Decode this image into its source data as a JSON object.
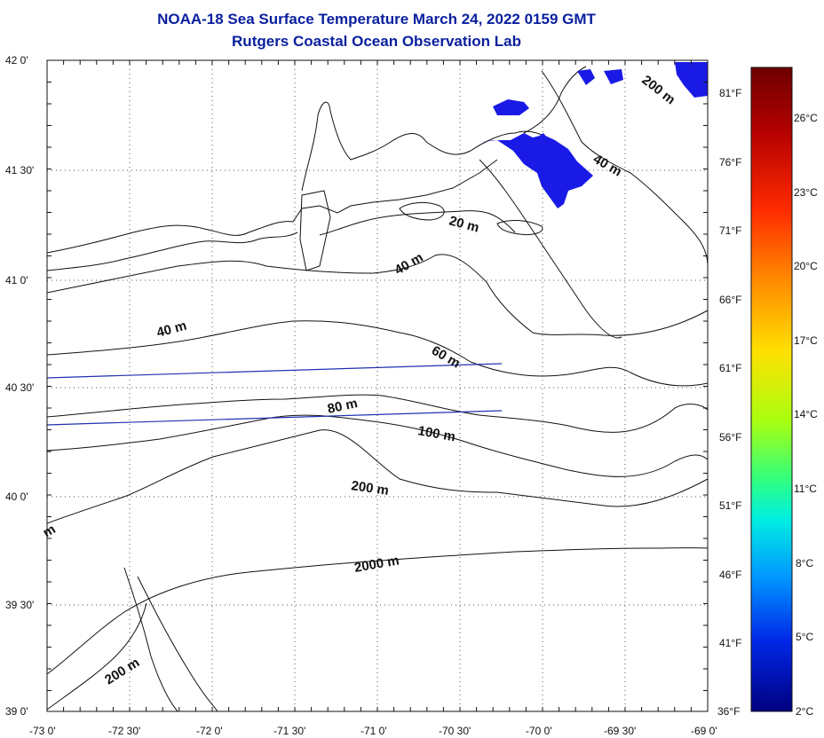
{
  "title": {
    "line1": "NOAA-18 Sea Surface Temperature March 24, 2022 0159 GMT",
    "line2": "Rutgers Coastal Ocean Observation Lab"
  },
  "map": {
    "lat_labels": [
      "42 0'",
      "41 30'",
      "41 0'",
      "40 30'",
      "40 0'",
      "39 30'",
      "39 0'"
    ],
    "lon_labels": [
      "-73 0'",
      "-72 30'",
      "-72 0'",
      "-71 30'",
      "-71 0'",
      "-70 30'",
      "-70 0'",
      "-69 30'",
      "-69 0'"
    ],
    "f_labels": [
      "81°F",
      "76°F",
      "71°F",
      "66°F",
      "61°F",
      "56°F",
      "51°F",
      "46°F",
      "41°F",
      "36°F"
    ],
    "contour_labels": [
      "200 m",
      "40 m",
      "20 m",
      "40 m",
      "40 m",
      "60 m",
      "80 m",
      "100 m",
      "200 m",
      "2000 m",
      "200 m",
      "m"
    ],
    "sst_cold_color": "#1a1ae6"
  },
  "colorbar": {
    "labels": [
      "26°C",
      "23°C",
      "20°C",
      "17°C",
      "14°C",
      "11°C",
      "8°C",
      "5°C",
      "2°C"
    ],
    "colors": [
      "#6e0000",
      "#d41e00",
      "#ff8a00",
      "#ffd800",
      "#b8ff00",
      "#3eff6e",
      "#00e8e0",
      "#0098ff",
      "#0030e8",
      "#00007e"
    ]
  }
}
